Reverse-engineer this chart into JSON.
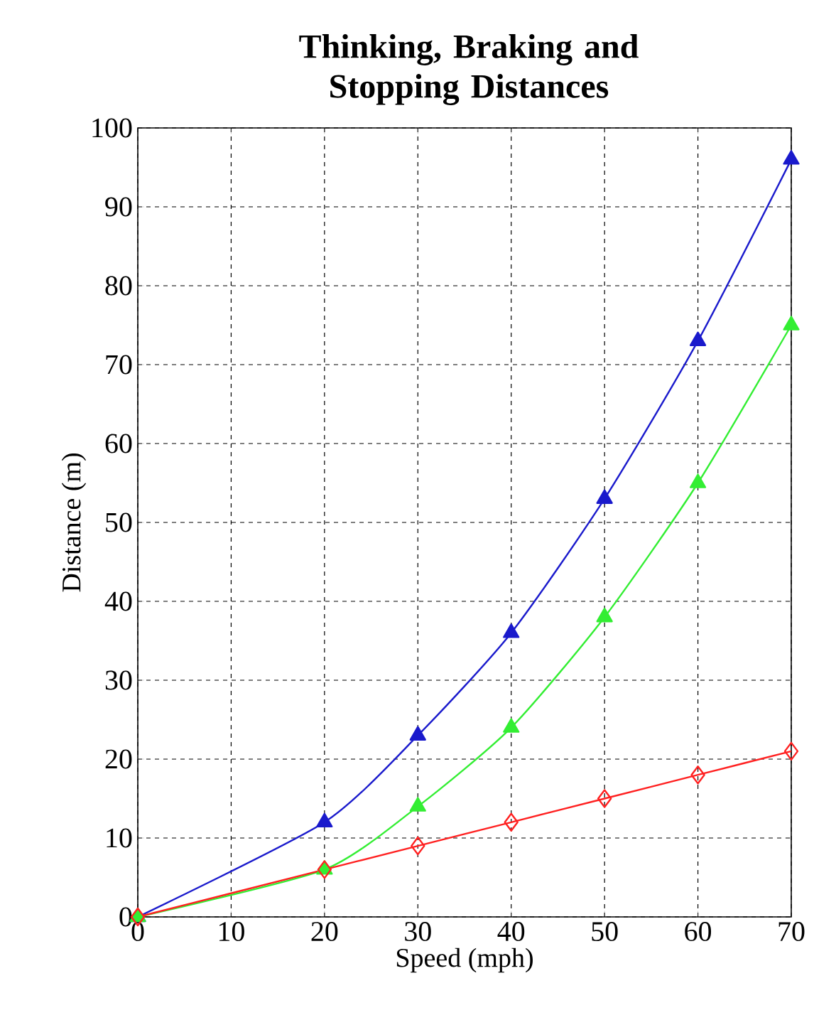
{
  "chart_data": {
    "type": "line",
    "title": "Thinking, Braking and Stopping Distances",
    "xlabel": "Speed (mph)",
    "ylabel": "Distance (m)",
    "x": [
      0,
      20,
      30,
      40,
      50,
      60,
      70
    ],
    "series": [
      {
        "color": "#ff2020",
        "marker": "diamond",
        "values": [
          0,
          6,
          9,
          12,
          15,
          18,
          21
        ]
      },
      {
        "color": "#33ee33",
        "marker": "triangle",
        "values": [
          0,
          6,
          14,
          24,
          38,
          55,
          75
        ]
      },
      {
        "color": "#1a1acc",
        "marker": "triangle",
        "values": [
          0,
          12,
          23,
          36,
          53,
          73,
          96
        ]
      }
    ],
    "xlim": [
      0,
      70
    ],
    "xticks": [
      0,
      10,
      20,
      30,
      40,
      50,
      60,
      70
    ],
    "ylim": [
      0,
      100
    ],
    "yticks": [
      0,
      10,
      20,
      30,
      40,
      50,
      60,
      70,
      80,
      90,
      100
    ],
    "grid": true,
    "line_style": "solid"
  }
}
